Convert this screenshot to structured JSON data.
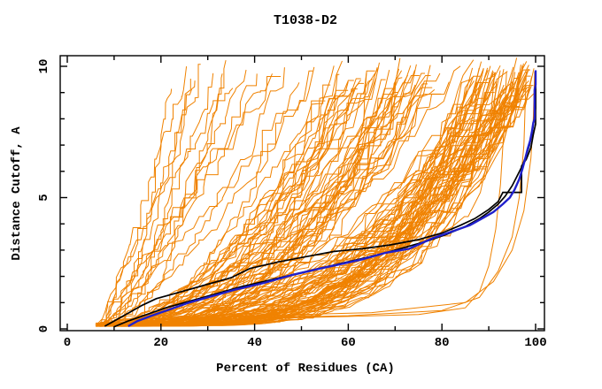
{
  "chart_data": {
    "type": "line",
    "title": "T1038-D2",
    "xlabel": "Percent of Residues (CA)",
    "ylabel": "Distance Cutoff, A",
    "xlim": [
      0,
      100
    ],
    "ylim": [
      0,
      10
    ],
    "grid": false,
    "frame": "closed box with inward tick marks on all four sides",
    "x_ticks": {
      "major": [
        0,
        20,
        40,
        60,
        80,
        100
      ],
      "minor": [
        10,
        30,
        50,
        70,
        90
      ],
      "labels": [
        "0",
        "20",
        "40",
        "60",
        "80",
        "100"
      ]
    },
    "y_ticks": {
      "major": [
        0,
        5,
        10
      ],
      "minor": [
        1,
        2,
        3,
        4,
        6,
        7,
        8,
        9
      ],
      "labels": [
        "0",
        "5",
        "10"
      ]
    },
    "colors": {
      "ensemble": "#f08200",
      "reference": "#000000",
      "highlight": "#2020cc",
      "frame": "#000000"
    },
    "series": [
      {
        "name": "orange_ensemble",
        "color_key": "ensemble",
        "width": 1,
        "type": "generated",
        "count": 132,
        "seed": 7,
        "start_percent_range": [
          6,
          16
        ],
        "end_percent_range": [
          22,
          100
        ],
        "cutoff_range": [
          0.1,
          9.8
        ],
        "note": "dense bundle of overlapping orange model curves, monotone increasing"
      },
      {
        "name": "orange_outlier_1",
        "color_key": "ensemble",
        "width": 1,
        "points": [
          [
            7,
            0.25
          ],
          [
            30,
            0.35
          ],
          [
            55,
            0.45
          ],
          [
            75,
            0.55
          ],
          [
            85,
            0.8
          ],
          [
            88,
            1.4
          ],
          [
            90,
            2.4
          ],
          [
            91.5,
            3.8
          ],
          [
            92.5,
            5.5
          ],
          [
            93.2,
            7.5
          ],
          [
            93.8,
            9.8
          ]
        ]
      },
      {
        "name": "orange_outlier_2",
        "color_key": "ensemble",
        "width": 1,
        "points": [
          [
            8,
            0.3
          ],
          [
            35,
            0.4
          ],
          [
            60,
            0.5
          ],
          [
            80,
            0.7
          ],
          [
            88,
            1.2
          ],
          [
            92,
            2.2
          ],
          [
            95,
            3.5
          ],
          [
            96.5,
            5.0
          ],
          [
            97.5,
            7.0
          ],
          [
            98,
            9.8
          ]
        ]
      },
      {
        "name": "orange_outlier_3",
        "color_key": "ensemble",
        "width": 1,
        "points": [
          [
            10,
            0.35
          ],
          [
            40,
            0.5
          ],
          [
            65,
            0.62
          ],
          [
            85,
            1.0
          ],
          [
            91,
            1.8
          ],
          [
            95,
            3.0
          ],
          [
            97.5,
            4.5
          ],
          [
            99,
            6.5
          ],
          [
            99.5,
            8.0
          ],
          [
            99.8,
            9.8
          ]
        ]
      },
      {
        "name": "black_curve_1",
        "color_key": "reference",
        "width": 1.7,
        "points": [
          [
            8,
            0.1
          ],
          [
            10,
            0.3
          ],
          [
            13,
            0.6
          ],
          [
            16,
            0.9
          ],
          [
            19,
            1.15
          ],
          [
            23,
            1.35
          ],
          [
            27,
            1.55
          ],
          [
            31,
            1.75
          ],
          [
            35,
            1.95
          ],
          [
            39,
            2.3
          ],
          [
            45,
            2.55
          ],
          [
            51,
            2.75
          ],
          [
            57,
            2.95
          ],
          [
            63,
            3.05
          ],
          [
            69,
            3.2
          ],
          [
            75,
            3.4
          ],
          [
            80,
            3.65
          ],
          [
            84,
            3.95
          ],
          [
            87,
            4.2
          ],
          [
            90,
            4.55
          ],
          [
            92,
            4.85
          ],
          [
            93,
            5.2
          ],
          [
            97,
            5.2
          ],
          [
            97,
            6.2
          ],
          [
            98,
            6.45
          ],
          [
            99,
            6.9
          ],
          [
            99.5,
            7.4
          ],
          [
            100,
            7.8
          ],
          [
            100,
            9.8
          ]
        ]
      },
      {
        "name": "black_curve_2",
        "color_key": "reference",
        "width": 1.7,
        "points": [
          [
            10,
            0.08
          ],
          [
            13,
            0.3
          ],
          [
            17,
            0.55
          ],
          [
            21,
            0.8
          ],
          [
            26,
            1.05
          ],
          [
            31,
            1.3
          ],
          [
            37,
            1.6
          ],
          [
            43,
            1.85
          ],
          [
            49,
            2.1
          ],
          [
            55,
            2.35
          ],
          [
            61,
            2.6
          ],
          [
            67,
            2.85
          ],
          [
            72,
            3.1
          ],
          [
            77,
            3.35
          ],
          [
            81,
            3.6
          ],
          [
            85,
            3.9
          ],
          [
            88,
            4.2
          ],
          [
            90,
            4.45
          ],
          [
            92,
            4.75
          ],
          [
            93.5,
            5.05
          ],
          [
            95,
            5.45
          ],
          [
            96,
            5.8
          ],
          [
            97,
            6.15
          ],
          [
            98,
            6.6
          ],
          [
            98.7,
            7.0
          ],
          [
            99.3,
            7.5
          ],
          [
            99.7,
            8.0
          ],
          [
            100,
            8.4
          ],
          [
            100,
            9.8
          ]
        ]
      },
      {
        "name": "blue_curve",
        "color_key": "highlight",
        "width": 2.4,
        "points": [
          [
            13,
            0.1
          ],
          [
            15,
            0.3
          ],
          [
            18,
            0.5
          ],
          [
            22,
            0.75
          ],
          [
            26,
            1.0
          ],
          [
            31,
            1.25
          ],
          [
            36,
            1.5
          ],
          [
            42,
            1.75
          ],
          [
            48,
            2.05
          ],
          [
            54,
            2.3
          ],
          [
            58,
            2.45
          ],
          [
            63,
            2.65
          ],
          [
            68,
            2.9
          ],
          [
            73,
            3.05
          ],
          [
            78,
            3.45
          ],
          [
            82,
            3.7
          ],
          [
            86,
            3.95
          ],
          [
            89,
            4.25
          ],
          [
            91,
            4.45
          ],
          [
            93,
            4.75
          ],
          [
            94.5,
            5.0
          ],
          [
            95.5,
            5.3
          ],
          [
            96.5,
            5.7
          ],
          [
            97.2,
            6.1
          ],
          [
            97.8,
            6.5
          ],
          [
            98.3,
            6.85
          ],
          [
            98.8,
            7.15
          ],
          [
            99.2,
            7.5
          ],
          [
            99.5,
            7.85
          ],
          [
            99.8,
            8.0
          ],
          [
            99.8,
            9.1
          ],
          [
            100,
            9.3
          ],
          [
            100,
            9.85
          ]
        ]
      }
    ]
  }
}
